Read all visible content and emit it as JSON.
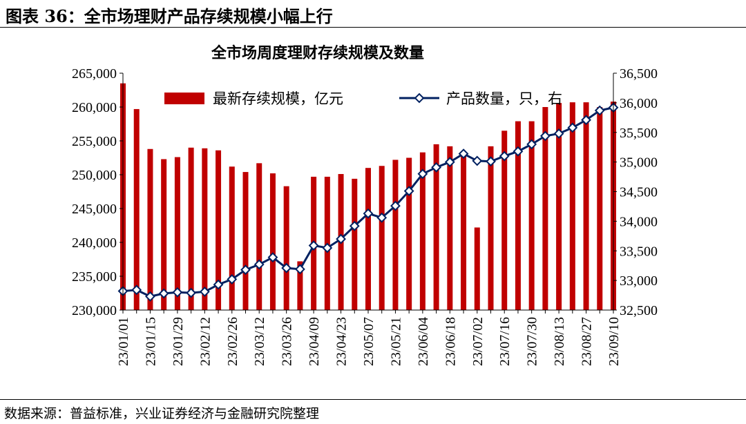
{
  "figure": {
    "title": "图表 36：全市场理财产品存续规模小幅上行",
    "source": "数据来源：普益标准，兴业证券经济与金融研究院整理"
  },
  "chart_data": {
    "type": "bar+line",
    "title": "全市场周度理财存续规模及数量",
    "categories": [
      "23/01/01",
      "23/01/08",
      "23/01/15",
      "23/01/22",
      "23/01/29",
      "23/02/05",
      "23/02/12",
      "23/02/19",
      "23/02/26",
      "23/03/05",
      "23/03/12",
      "23/03/19",
      "23/03/26",
      "23/04/02",
      "23/04/09",
      "23/04/16",
      "23/04/23",
      "23/04/30",
      "23/05/07",
      "23/05/14",
      "23/05/21",
      "23/05/28",
      "23/06/04",
      "23/06/11",
      "23/06/18",
      "23/06/25",
      "23/07/02",
      "23/07/09",
      "23/07/16",
      "23/07/23",
      "23/07/30",
      "23/08/06",
      "23/08/13",
      "23/08/20",
      "23/08/27",
      "23/09/03",
      "23/09/10"
    ],
    "x_tick_labels": [
      "23/01/01",
      "23/01/15",
      "23/01/29",
      "23/02/12",
      "23/02/26",
      "23/03/12",
      "23/03/26",
      "23/04/09",
      "23/04/23",
      "23/05/07",
      "23/05/21",
      "23/06/04",
      "23/06/18",
      "23/07/02",
      "23/07/16",
      "23/07/30",
      "23/08/13",
      "23/08/27",
      "23/09/10"
    ],
    "series": [
      {
        "name": "最新存续规模，亿元",
        "type": "bar",
        "axis": "left",
        "color": "#c00000",
        "values": [
          263500,
          259700,
          253800,
          252300,
          252600,
          254000,
          253900,
          253600,
          251200,
          250400,
          251700,
          250200,
          248300,
          237200,
          249700,
          249700,
          250100,
          249400,
          251000,
          251300,
          252200,
          252500,
          253300,
          254500,
          254200,
          253200,
          242200,
          254200,
          256500,
          257900,
          257900,
          260000,
          260600,
          260700,
          260700,
          260000,
          260800
        ]
      },
      {
        "name": "产品数量，只，右",
        "type": "line",
        "axis": "right",
        "color": "#002060",
        "marker": "diamond",
        "values": [
          32820,
          32840,
          32730,
          32780,
          32800,
          32790,
          32810,
          32930,
          33020,
          33180,
          33270,
          33390,
          33210,
          33190,
          33590,
          33550,
          33700,
          33920,
          34130,
          34060,
          34260,
          34510,
          34800,
          34910,
          35000,
          35140,
          35020,
          35010,
          35100,
          35180,
          35300,
          35440,
          35480,
          35580,
          35710,
          35870,
          35920
        ]
      }
    ],
    "yaxis_left": {
      "min": 230000,
      "max": 265000,
      "step": 5000,
      "tick_labels": [
        "230,000",
        "235,000",
        "240,000",
        "245,000",
        "250,000",
        "255,000",
        "260,000",
        "265,000"
      ]
    },
    "yaxis_right": {
      "min": 32500,
      "max": 36500,
      "step": 500,
      "tick_labels": [
        "32,500",
        "33,000",
        "33,500",
        "34,000",
        "34,500",
        "35,000",
        "35,500",
        "36,000",
        "36,500"
      ]
    },
    "grid": false,
    "legend": "top-inside"
  }
}
